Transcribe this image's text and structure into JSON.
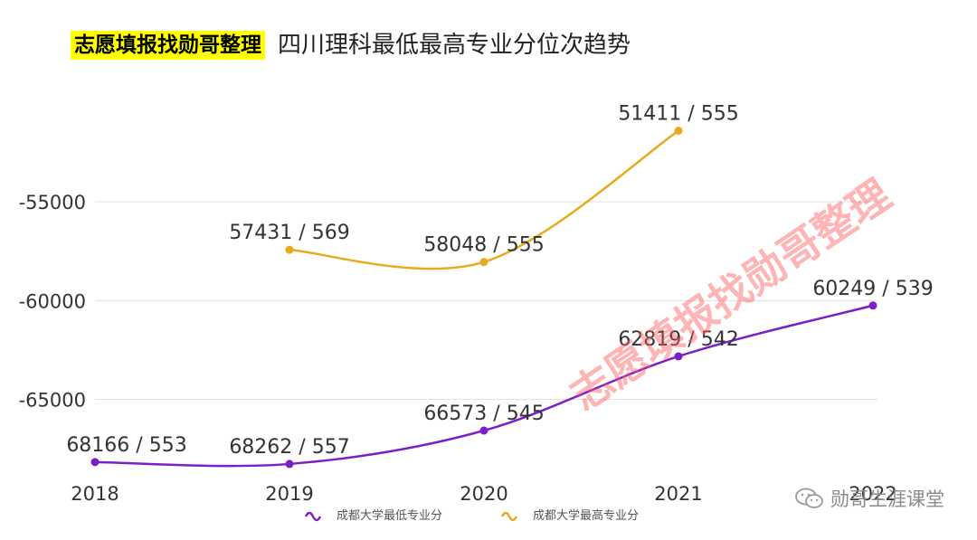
{
  "header": {
    "tag": "志愿填报找勋哥整理",
    "title": "四川理科最低最高专业分位次趋势"
  },
  "watermark": {
    "diagonal": "志愿填报找勋哥整理",
    "brand": "勋哥生涯课堂",
    "brand_icon": "wechat-icon"
  },
  "colors": {
    "min_series": "#7b1fc9",
    "max_series": "#e6ac1e",
    "grid": "#e0e0e0",
    "watermark": "#ff5a5a"
  },
  "chart_data": {
    "type": "line",
    "title": "四川理科最低最高专业分位次趋势",
    "categories": [
      "2018",
      "2019",
      "2020",
      "2021",
      "2022"
    ],
    "x_tick_labels": [
      "2018",
      "2019",
      "2020",
      "2021",
      "2022"
    ],
    "ylim": [
      -69500,
      -48000
    ],
    "yticks": [
      -55000,
      -60000,
      -65000
    ],
    "ytick_labels": [
      "-55000",
      "-60000",
      "-65000"
    ],
    "series": [
      {
        "name": "成都大学最低专业分",
        "color": "#7b1fc9",
        "values": [
          -68166,
          -68262,
          -66573,
          -62819,
          -60249
        ],
        "labels": [
          "68166 / 553",
          "68262 / 557",
          "66573 / 545",
          "62819 / 542",
          "60249 / 539"
        ]
      },
      {
        "name": "成都大学最高专业分",
        "color": "#e6ac1e",
        "values": [
          null,
          -57431,
          -58048,
          -51411,
          null
        ],
        "labels": [
          null,
          "57431 / 569",
          "58048 / 555",
          "51411 / 555",
          null
        ]
      }
    ],
    "legend": "bottom-center"
  }
}
